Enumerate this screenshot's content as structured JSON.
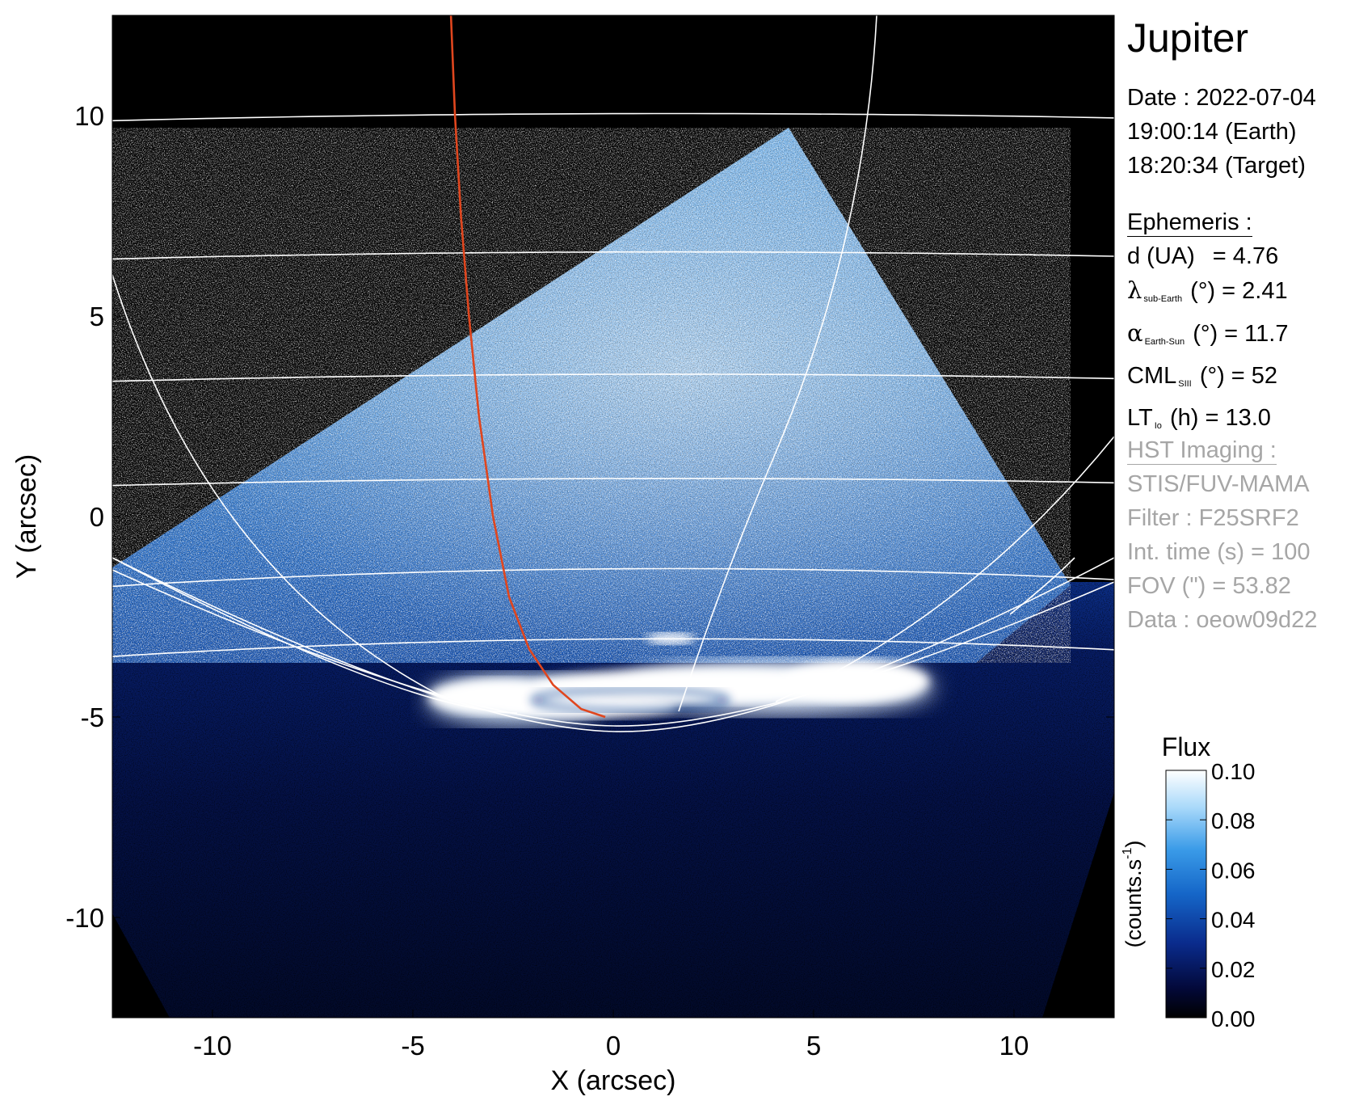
{
  "title": "Jupiter",
  "date": {
    "date_line": "Date : 2022-07-04",
    "earth_line": "19:00:14 (Earth)",
    "target_line": "18:20:34 (Target)"
  },
  "ephemeris": {
    "heading": "Ephemeris :",
    "d": {
      "label": "d (UA)",
      "value": "= 4.76"
    },
    "lambda": {
      "symbol": "λ",
      "sub": "sub-Earth",
      "unit": "(°)",
      "value": "= 2.41"
    },
    "alpha": {
      "symbol": "α",
      "sub": "Earth-Sun",
      "unit": "(°)",
      "value": "= 11.7"
    },
    "cml": {
      "symbol": "CML",
      "sub": "SIII",
      "unit": "(°)",
      "value": "= 52"
    },
    "lt": {
      "symbol": "LT",
      "sub": "Io",
      "unit": "(h)",
      "value": "= 13.0"
    }
  },
  "hst": {
    "heading": "HST Imaging :",
    "instrument": "STIS/FUV-MAMA",
    "filter": "Filter : F25SRF2",
    "int_time": "Int. time (s) = 100",
    "fov": "FOV (\") = 53.82",
    "data": "Data : oeow09d22"
  },
  "colors": {
    "background": "#000000",
    "grid": "#ffffff",
    "footprint": "#e0461e",
    "text_gray": "#a6a6a6",
    "colormap": [
      "#000000",
      "#03093a",
      "#0a2b8c",
      "#1566c8",
      "#3a9be8",
      "#a9d9fa",
      "#ffffff"
    ]
  },
  "chart_data": {
    "type": "heatmap",
    "xlabel": "X (arcsec)",
    "ylabel": "Y (arcsec)",
    "xlim": [
      -12.5,
      12.5
    ],
    "ylim": [
      -12.5,
      12.5
    ],
    "xticks": [
      -10,
      -5,
      0,
      5,
      10
    ],
    "yticks": [
      10,
      5,
      0,
      -5,
      -10
    ],
    "xtick_labels": [
      "-10",
      "-5",
      "0",
      "5",
      "10"
    ],
    "ytick_labels": [
      "10",
      "5",
      "0",
      "-5",
      "-10"
    ],
    "grid": true,
    "image": {
      "description_values": "FUV auroral emission, bright oval near y = -4.5",
      "bright_region": {
        "x": [
          -4.5,
          7.2
        ],
        "y": [
          -5.1,
          -3.8
        ]
      },
      "diffuse_region_corners": [
        [
          -12.5,
          -1.2
        ],
        [
          4.4,
          9.7
        ],
        [
          11.4,
          -2.0
        ],
        [
          -12.5,
          -1.2
        ]
      ]
    },
    "io_footprint": {
      "x": [
        -4.05,
        -3.95,
        -3.8,
        -3.6,
        -3.35,
        -3.0,
        -2.6,
        -2.1,
        -1.5,
        -0.8,
        -0.2
      ],
      "y": [
        12.5,
        10.0,
        7.5,
        5.0,
        2.5,
        0.0,
        -2.0,
        -3.3,
        -4.2,
        -4.8,
        -5.0
      ]
    },
    "latitudes_y_center": [
      10.05,
      6.6,
      3.55,
      0.95,
      -1.3,
      -3.05
    ],
    "colorbar": {
      "label": "Flux",
      "unit": "(counts.s",
      "unit_sup": "-1",
      "unit_end": ")",
      "range": [
        0.0,
        0.1
      ],
      "ticks": [
        0.1,
        0.08,
        0.06,
        0.04,
        0.02,
        0.0
      ],
      "tick_labels": [
        "0.10",
        "0.08",
        "0.06",
        "0.04",
        "0.02",
        "0.00"
      ]
    }
  }
}
